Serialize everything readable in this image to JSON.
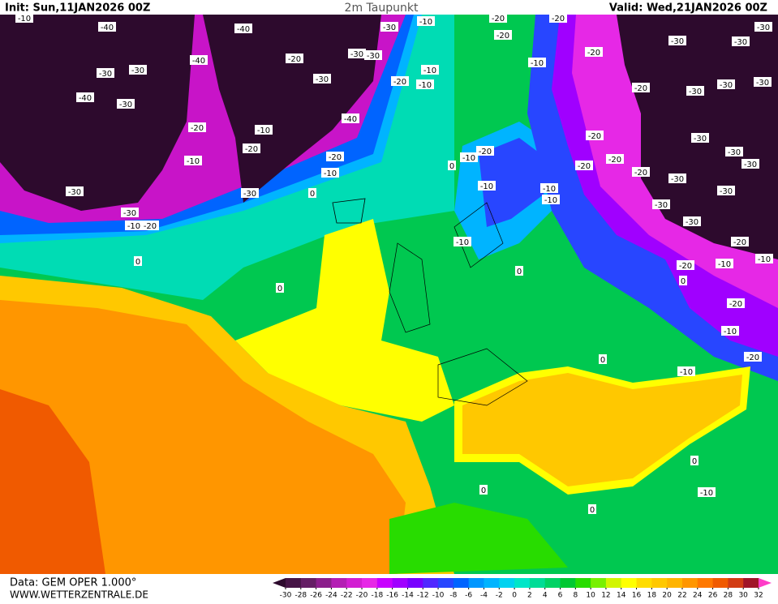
{
  "header": {
    "init": "Init: Sun,11JAN2026 00Z",
    "title": "2m Taupunkt",
    "valid": "Valid: Wed,21JAN2026 00Z"
  },
  "footer": {
    "source": "Data: GEM OPER 1.000°",
    "site": "WWW.WETTERZENTRALE.DE"
  },
  "legend": {
    "ticks": [
      -30,
      -28,
      -26,
      -24,
      -22,
      -20,
      -18,
      -16,
      -14,
      -12,
      -10,
      -8,
      -6,
      -4,
      -2,
      0,
      2,
      4,
      6,
      8,
      10,
      12,
      14,
      16,
      18,
      20,
      22,
      24,
      26,
      28,
      30,
      32
    ],
    "colors": [
      "#2d0a2d",
      "#461446",
      "#641e64",
      "#8c1e8c",
      "#b41eb4",
      "#d21ed2",
      "#e628e6",
      "#c800ff",
      "#a000ff",
      "#7800ff",
      "#5028ff",
      "#2846ff",
      "#0064ff",
      "#0096ff",
      "#00b4ff",
      "#00d2f0",
      "#00e6c8",
      "#00dc96",
      "#00d264",
      "#00c832",
      "#28dc00",
      "#78f000",
      "#d2f500",
      "#ffff00",
      "#ffdc00",
      "#ffc800",
      "#ffb400",
      "#ff9600",
      "#ff7800",
      "#f05a00",
      "#d23c14",
      "#a01428",
      "#ff3cc8"
    ]
  },
  "map": {
    "contour_labels": [
      "-10",
      "-40",
      "-40",
      "-30",
      "-40",
      "-30",
      "-40",
      "-30",
      "-20",
      "-10",
      "-30",
      "-30",
      "-10",
      "-20",
      "0",
      "0",
      "0",
      "-30",
      "-20",
      "-10",
      "-20",
      "-10",
      "-40",
      "-30",
      "-20",
      "-20",
      "-10",
      "-10",
      "-10",
      "-20",
      "-20",
      "-20",
      "-10",
      "-20",
      "-30",
      "-30",
      "-30",
      "-20",
      "-30",
      "-30",
      "-30",
      "-20",
      "-20",
      "-20",
      "-30",
      "-30",
      "-30",
      "-20",
      "-30",
      "-30",
      "-30",
      "-30",
      "-10",
      "-20",
      "-10",
      "-10",
      "0",
      "-10",
      "-10",
      "-20",
      "-20",
      "-10",
      "-10",
      "0",
      "0",
      "-20",
      "-10",
      "-20",
      "-10",
      "0",
      "0",
      "-10",
      "0",
      "0",
      "-30",
      "-30",
      "-30"
    ]
  }
}
